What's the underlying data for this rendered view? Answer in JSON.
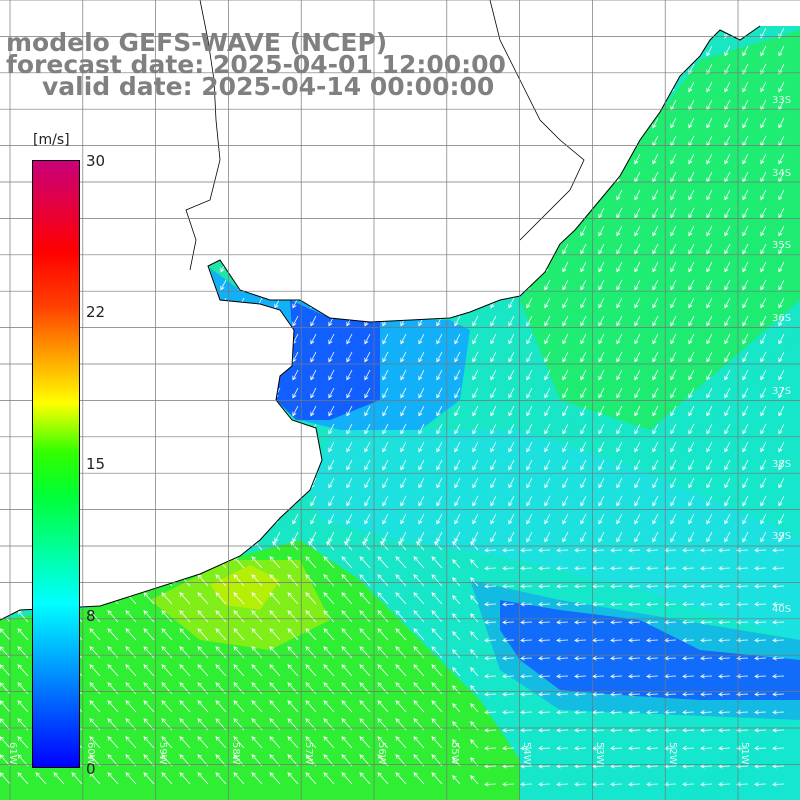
{
  "title": {
    "line1": "modelo GEFS-WAVE (NCEP)",
    "line2": "forecast date: 2025-04-01 12:00:00",
    "line3": "valid date: 2025-04-14 00:00:00"
  },
  "colorbar": {
    "unit": "[m/s]",
    "ticks": [
      "30",
      "22",
      "15",
      "8",
      "0"
    ],
    "tick_values": [
      30,
      22,
      15,
      8,
      0
    ],
    "range": [
      0,
      30
    ],
    "colors": [
      "#0000ff",
      "#00aaff",
      "#00ffff",
      "#00ff00",
      "#ffff00",
      "#ff7f00",
      "#ff0000",
      "#cc0066"
    ]
  },
  "grid_labels": {
    "lat": [
      "33S",
      "34S",
      "35S",
      "36S",
      "37S",
      "38S",
      "39S",
      "40S"
    ],
    "lon": [
      "61W",
      "60W",
      "59W",
      "58W",
      "57W",
      "56W",
      "55W",
      "54W",
      "53W",
      "52W",
      "51W"
    ]
  },
  "land_color": "#ffffff",
  "coast_color": "#000000",
  "grid_color": "#777777"
}
